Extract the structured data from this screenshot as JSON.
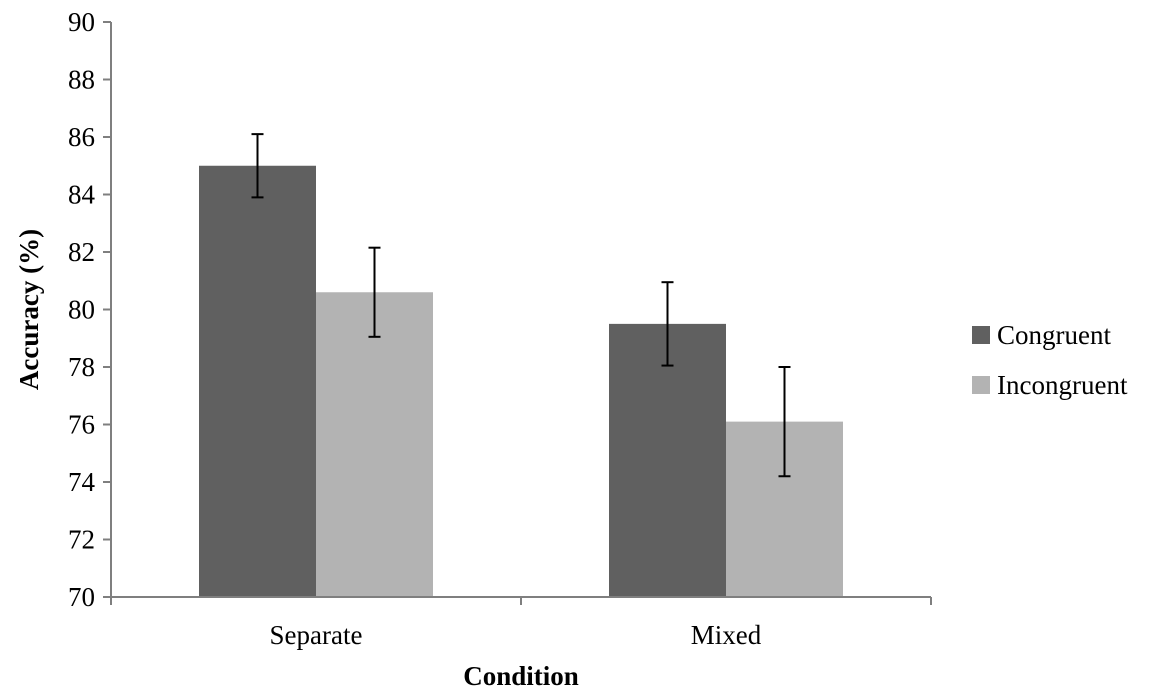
{
  "chart_data": {
    "type": "bar",
    "title": "",
    "xlabel": "Condition",
    "ylabel": "Accuracy (%)",
    "categories": [
      "Separate",
      "Mixed"
    ],
    "ylim": [
      70,
      90
    ],
    "yticks": [
      70,
      72,
      74,
      76,
      78,
      80,
      82,
      84,
      86,
      88,
      90
    ],
    "grid": false,
    "legend_position": "right",
    "series": [
      {
        "name": "Congruent",
        "color": "#606060",
        "values": [
          85.0,
          79.5
        ],
        "error": [
          1.1,
          1.45
        ]
      },
      {
        "name": "Incongruent",
        "color": "#b3b3b3",
        "values": [
          80.6,
          76.1
        ],
        "error": [
          1.55,
          1.9
        ]
      }
    ]
  }
}
